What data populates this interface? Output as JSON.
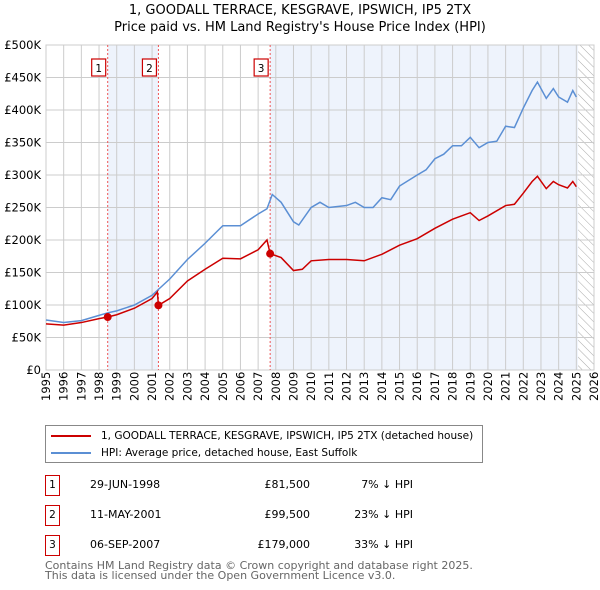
{
  "chart_data": {
    "type": "line",
    "title": "1, GOODALL TERRACE, KESGRAVE, IPSWICH, IP5 2TX",
    "subtitle": "Price paid vs. HM Land Registry's House Price Index (HPI)",
    "xlim": [
      1995,
      2026
    ],
    "ylim": [
      0,
      500000
    ],
    "yticks": [
      0,
      50000,
      100000,
      150000,
      200000,
      250000,
      300000,
      350000,
      400000,
      450000,
      500000
    ],
    "ytick_labels": [
      "£0",
      "£50K",
      "£100K",
      "£150K",
      "£200K",
      "£250K",
      "£300K",
      "£350K",
      "£400K",
      "£450K",
      "£500K"
    ],
    "xtick_labels": [
      "1995",
      "1996",
      "1997",
      "1998",
      "1999",
      "2000",
      "2001",
      "2002",
      "2003",
      "2004",
      "2005",
      "2006",
      "2007",
      "2008",
      "2009",
      "2010",
      "2011",
      "2012",
      "2013",
      "2014",
      "2015",
      "2016",
      "2017",
      "2018",
      "2019",
      "2020",
      "2021",
      "2022",
      "2023",
      "2024",
      "2025",
      "2026"
    ],
    "grid": true,
    "series": [
      {
        "name": "1, GOODALL TERRACE, KESGRAVE, IPSWICH, IP5 2TX (detached house)",
        "color": "#cc0000",
        "x": [
          1995,
          1996,
          1997,
          1998,
          1998.49,
          1999,
          2000,
          2001,
          2001.3,
          2001.36,
          2002,
          2003,
          2004,
          2005,
          2006,
          2007,
          2007.5,
          2007.68,
          2008.3,
          2009,
          2009.5,
          2010,
          2011,
          2012,
          2013,
          2014,
          2015,
          2016,
          2017,
          2018,
          2019,
          2019.5,
          2020,
          2021,
          2021.5,
          2022,
          2022.5,
          2022.8,
          2023.3,
          2023.7,
          2024,
          2024.5,
          2024.8,
          2025
        ],
        "y": [
          71000,
          69000,
          73000,
          79000,
          81500,
          85000,
          95000,
          110000,
          120000,
          99500,
          110000,
          137000,
          155000,
          172000,
          171000,
          185000,
          200000,
          179000,
          173000,
          153000,
          155000,
          168000,
          170000,
          170000,
          168000,
          178000,
          192000,
          202000,
          218000,
          232000,
          242000,
          230000,
          237000,
          253000,
          255000,
          272000,
          290000,
          298000,
          279000,
          290000,
          285000,
          280000,
          290000,
          282000
        ]
      },
      {
        "name": "HPI: Average price, detached house, East Suffolk",
        "color": "#5b8fd4",
        "x": [
          1995,
          1996,
          1997,
          1998,
          1998.5,
          1999,
          2000,
          2001,
          2001.4,
          2002,
          2003,
          2004,
          2005,
          2006,
          2007,
          2007.5,
          2007.8,
          2008.3,
          2009,
          2009.3,
          2010,
          2010.5,
          2011,
          2012,
          2012.5,
          2013,
          2013.5,
          2014,
          2014.5,
          2015,
          2016,
          2016.5,
          2017,
          2017.5,
          2018,
          2018.5,
          2019,
          2019.5,
          2020,
          2020.5,
          2021,
          2021.5,
          2022,
          2022.5,
          2022.8,
          2023.3,
          2023.7,
          2024,
          2024.5,
          2024.8,
          2025
        ],
        "y": [
          77000,
          73000,
          76000,
          84000,
          88000,
          91000,
          100000,
          115000,
          125000,
          140000,
          170000,
          195000,
          222000,
          222000,
          240000,
          248000,
          270000,
          258000,
          228000,
          223000,
          250000,
          258000,
          250000,
          253000,
          258000,
          250000,
          250000,
          265000,
          262000,
          283000,
          300000,
          308000,
          325000,
          332000,
          345000,
          345000,
          358000,
          342000,
          350000,
          352000,
          375000,
          373000,
          403000,
          430000,
          443000,
          418000,
          433000,
          420000,
          412000,
          430000,
          420000
        ]
      }
    ],
    "sales": [
      {
        "label": "1",
        "x": 1998.49,
        "y": 81500
      },
      {
        "label": "2",
        "x": 2001.36,
        "y": 99500
      },
      {
        "label": "3",
        "x": 2007.68,
        "y": 179000
      }
    ],
    "data_end": 2025.1
  },
  "legend": {
    "property": "1, GOODALL TERRACE, KESGRAVE, IPSWICH, IP5 2TX (detached house)",
    "hpi": "HPI: Average price, detached house, East Suffolk"
  },
  "transactions": [
    {
      "num": "1",
      "date": "29-JUN-1998",
      "price": "£81,500",
      "hpi": "7% ↓ HPI"
    },
    {
      "num": "2",
      "date": "11-MAY-2001",
      "price": "£99,500",
      "hpi": "23% ↓ HPI"
    },
    {
      "num": "3",
      "date": "06-SEP-2007",
      "price": "£179,000",
      "hpi": "33% ↓ HPI"
    }
  ],
  "footer": {
    "line1": "Contains HM Land Registry data © Crown copyright and database right 2025.",
    "line2": "This data is licensed under the Open Government Licence v3.0."
  }
}
